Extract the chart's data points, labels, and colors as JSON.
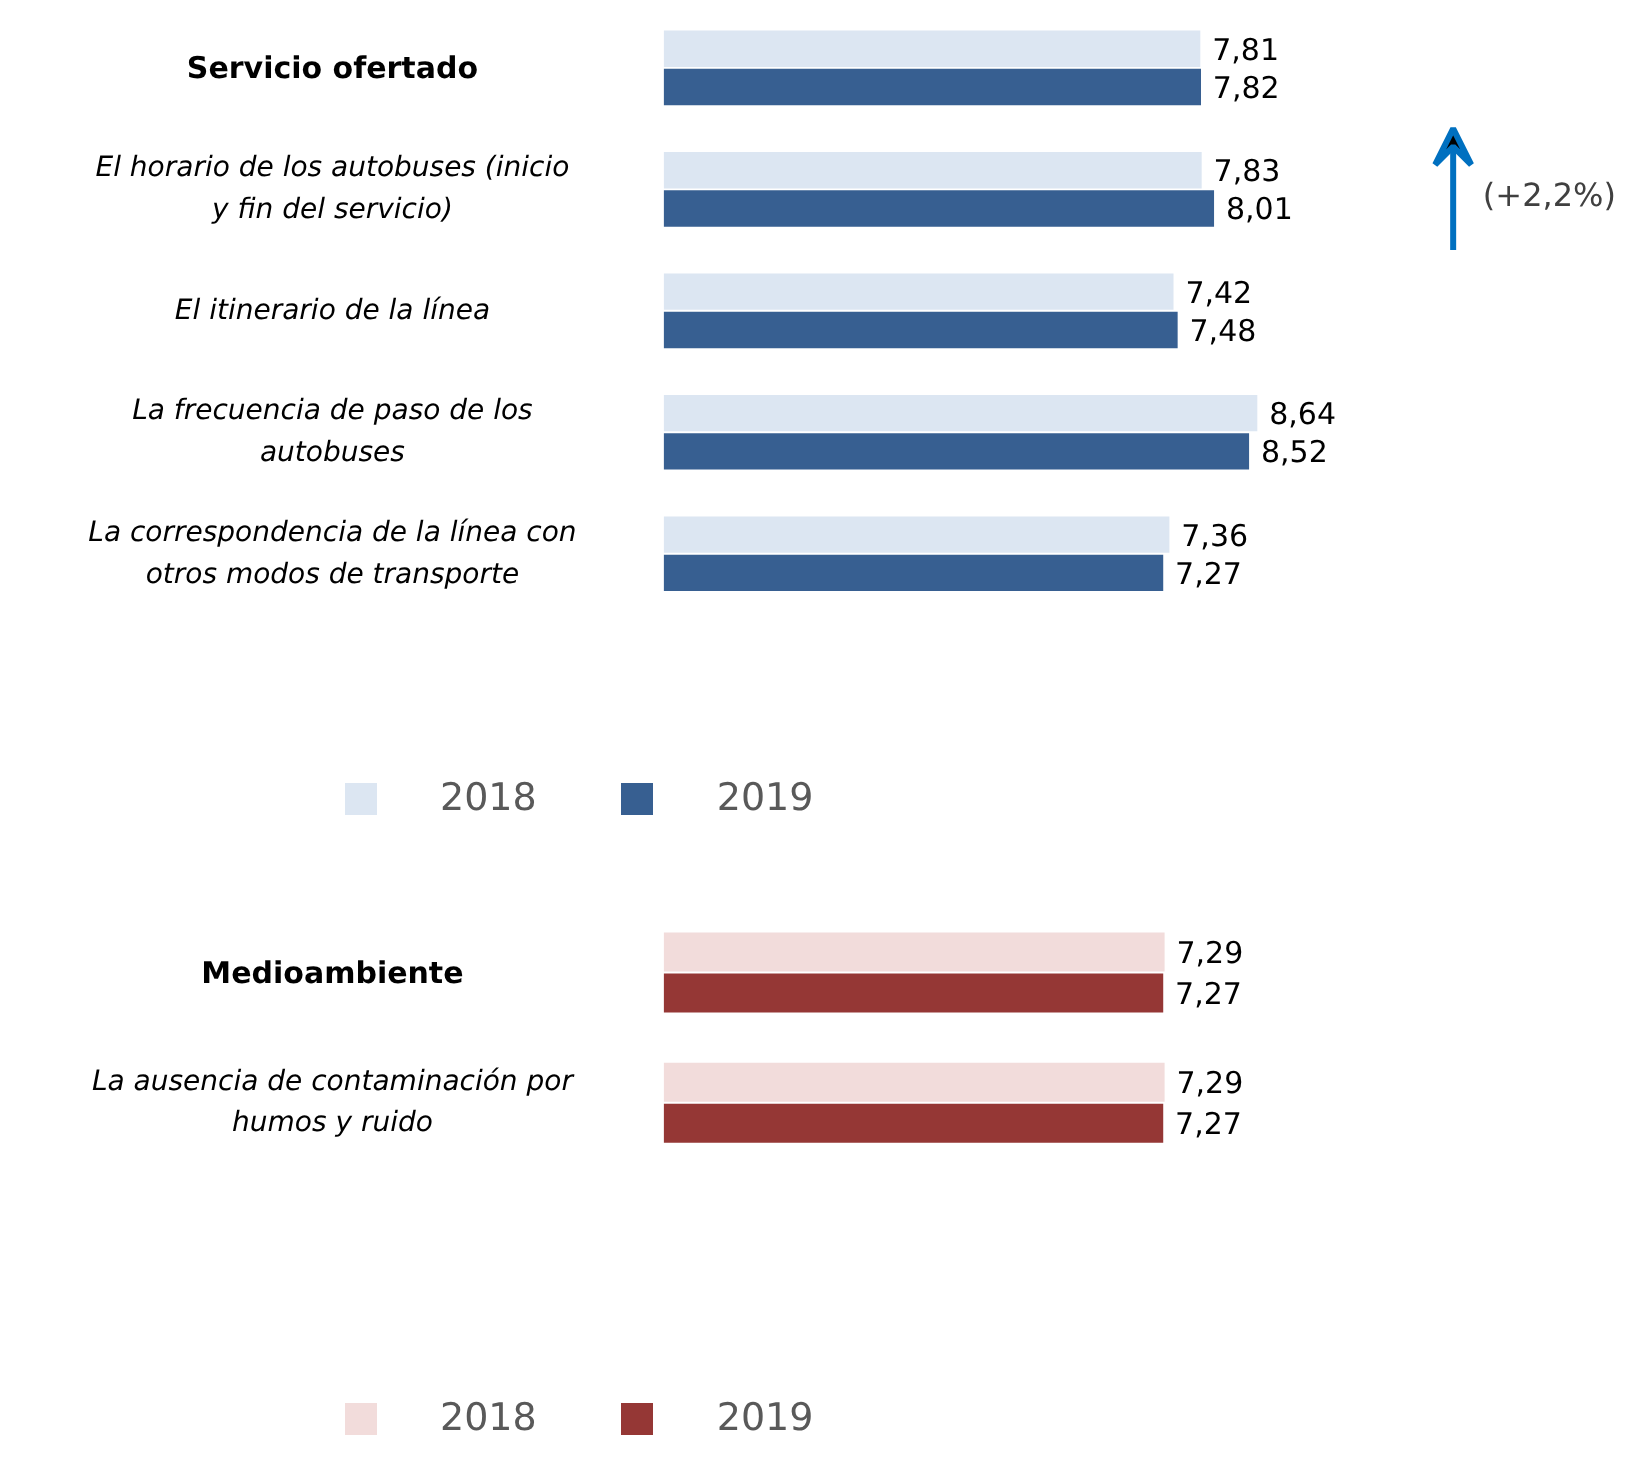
{
  "chart_data": [
    {
      "type": "bar",
      "orientation": "horizontal",
      "categories": [
        "Servicio ofertado",
        "El horario de los autobuses (inicio y fin del servicio)",
        "El itinerario de la línea",
        "La frecuencia de paso de los autobuses",
        "La correspondencia de la línea con otros modos de transporte"
      ],
      "series": [
        {
          "name": "2018",
          "color": "#dce6f2",
          "values": [
            7.81,
            7.83,
            7.42,
            8.64,
            7.36
          ],
          "value_labels": [
            "7,81",
            "7,83",
            "7,42",
            "8,64",
            "7,36"
          ]
        },
        {
          "name": "2019",
          "color": "#375f91",
          "values": [
            7.82,
            8.01,
            7.48,
            8.52,
            7.27
          ],
          "value_labels": [
            "7,82",
            "8,01",
            "7,48",
            "8,52",
            "7,27"
          ]
        }
      ],
      "annotations": [
        "(+2,2%)"
      ],
      "legend": "bottom",
      "grid": false
    },
    {
      "type": "bar",
      "orientation": "horizontal",
      "categories": [
        "Medioambiente",
        "La ausencia de contaminación por humos y ruido"
      ],
      "series": [
        {
          "name": "2018",
          "color": "#f2dcdb",
          "values": [
            7.29,
            7.29
          ],
          "value_labels": [
            "7,29",
            "7,29"
          ]
        },
        {
          "name": "2019",
          "color": "#953735",
          "values": [
            7.27,
            7.27
          ],
          "value_labels": [
            "7,27",
            "7,27"
          ]
        }
      ],
      "legend": "bottom",
      "grid": false
    }
  ]
}
